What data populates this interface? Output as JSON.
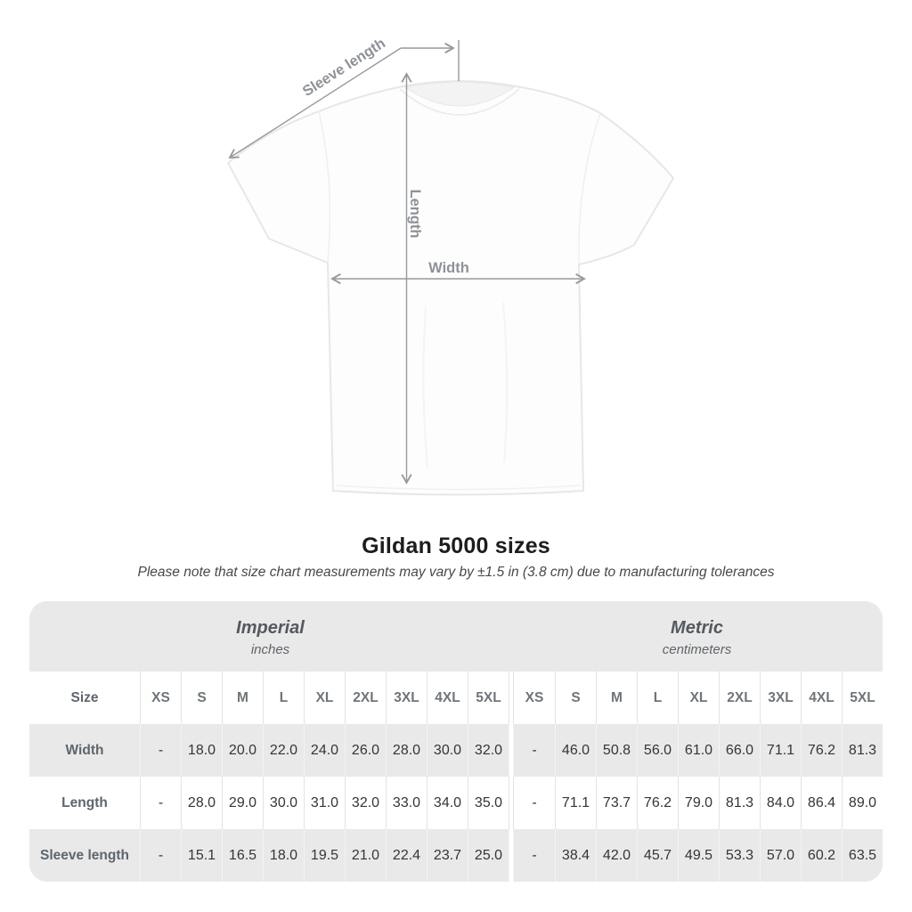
{
  "diagram": {
    "labels": {
      "sleeve": "Sleeve length",
      "length": "Length",
      "width": "Width"
    }
  },
  "chart_data": {
    "type": "table",
    "title": "Gildan 5000 sizes",
    "note": "Please note that size chart measurements may vary by ±1.5 in (3.8 cm) due to manufacturing tolerances",
    "column_groups": [
      {
        "name": "Imperial",
        "unit": "inches"
      },
      {
        "name": "Metric",
        "unit": "centimeters"
      }
    ],
    "size_column_header": "Size",
    "sizes": [
      "XS",
      "S",
      "M",
      "L",
      "XL",
      "2XL",
      "3XL",
      "4XL",
      "5XL"
    ],
    "rows": [
      {
        "label": "Width",
        "imperial": [
          "-",
          "18.0",
          "20.0",
          "22.0",
          "24.0",
          "26.0",
          "28.0",
          "30.0",
          "32.0"
        ],
        "metric": [
          "-",
          "46.0",
          "50.8",
          "56.0",
          "61.0",
          "66.0",
          "71.1",
          "76.2",
          "81.3"
        ]
      },
      {
        "label": "Length",
        "imperial": [
          "-",
          "28.0",
          "29.0",
          "30.0",
          "31.0",
          "32.0",
          "33.0",
          "34.0",
          "35.0"
        ],
        "metric": [
          "-",
          "71.1",
          "73.7",
          "76.2",
          "79.0",
          "81.3",
          "84.0",
          "86.4",
          "89.0"
        ]
      },
      {
        "label": "Sleeve length",
        "imperial": [
          "-",
          "15.1",
          "16.5",
          "18.0",
          "19.5",
          "21.0",
          "22.4",
          "23.7",
          "25.0"
        ],
        "metric": [
          "-",
          "38.4",
          "42.0",
          "45.7",
          "49.5",
          "53.3",
          "57.0",
          "60.2",
          "63.5"
        ]
      }
    ]
  },
  "colors": {
    "row_gray": "#e9e9e9",
    "divider_white": "#ffffff",
    "measure_line": "#97999c",
    "measure_label": "#8e9297",
    "value_text": "#333538",
    "row_label_text": "#5d666d",
    "size_header_text": "#6e757b",
    "title_text": "#1d1d1d",
    "note_text": "#484848"
  }
}
